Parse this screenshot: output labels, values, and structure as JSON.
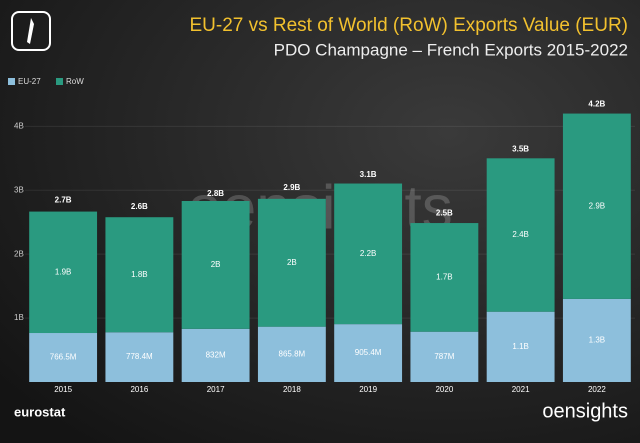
{
  "chart_data": {
    "type": "stacked_bar",
    "title": "EU-27 vs Rest of World (RoW) Exports Value (EUR)",
    "subtitle": "PDO Champagne – French Exports 2015-2022",
    "source": "eurostat",
    "brand": "oensights",
    "categories": [
      "2015",
      "2016",
      "2017",
      "2018",
      "2019",
      "2020",
      "2021",
      "2022"
    ],
    "series": [
      {
        "name": "EU-27",
        "color": "#8dbfdc",
        "values": [
          766500000,
          778400000,
          832000000,
          865800000,
          905400000,
          787000000,
          1100000000,
          1300000000
        ],
        "value_labels": [
          "766.5M",
          "778.4M",
          "832M",
          "865.8M",
          "905.4M",
          "787M",
          "1.1B",
          "1.3B"
        ]
      },
      {
        "name": "RoW",
        "color": "#2a9a80",
        "values": [
          1900000000,
          1800000000,
          2000000000,
          2000000000,
          2200000000,
          1700000000,
          2400000000,
          2900000000
        ],
        "value_labels": [
          "1.9B",
          "1.8B",
          "2B",
          "2B",
          "2.2B",
          "1.7B",
          "2.4B",
          "2.9B"
        ]
      }
    ],
    "totals": {
      "values": [
        2700000000,
        2600000000,
        2800000000,
        2900000000,
        3100000000,
        2500000000,
        3500000000,
        4200000000
      ],
      "value_labels": [
        "2.7B",
        "2.6B",
        "2.8B",
        "2.9B",
        "3.1B",
        "2.5B",
        "3.5B",
        "4.2B"
      ]
    },
    "ylim": [
      0,
      4600000000
    ],
    "yticks": [
      {
        "value": 1000000000,
        "label": "1B"
      },
      {
        "value": 2000000000,
        "label": "2B"
      },
      {
        "value": 3000000000,
        "label": "3B"
      },
      {
        "value": 4000000000,
        "label": "4B"
      }
    ],
    "grid": true,
    "legend": "top-left"
  }
}
